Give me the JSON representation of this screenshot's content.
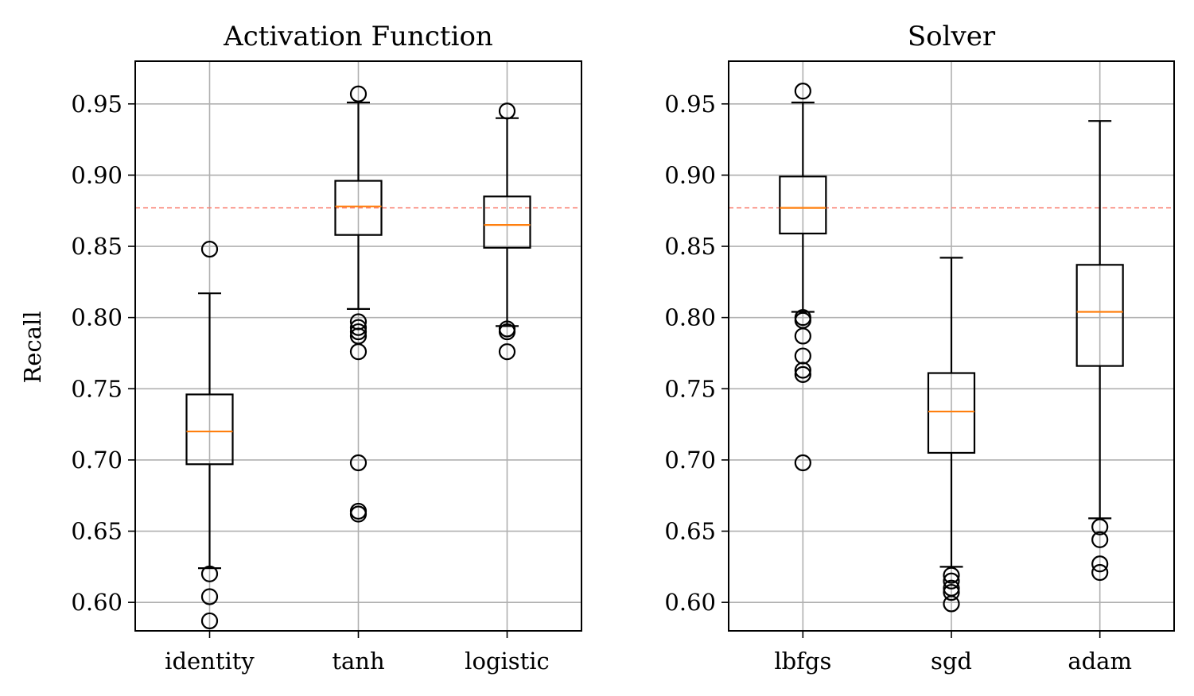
{
  "ylabel": "Recall",
  "colors": {
    "box": "#000000",
    "median": "#ff7f0e",
    "reference_line": "#fa8072",
    "grid": "#b0b0b0",
    "background": "#ffffff"
  },
  "chart_data": [
    {
      "type": "box",
      "title": "Activation Function",
      "ylabel": "Recall",
      "categories": [
        "identity",
        "tanh",
        "logistic"
      ],
      "ylim": [
        0.58,
        0.98
      ],
      "yticks": [
        "0.60",
        "0.65",
        "0.70",
        "0.75",
        "0.80",
        "0.85",
        "0.90",
        "0.95"
      ],
      "grid": true,
      "reference_line": 0.877,
      "boxes": [
        {
          "label": "identity",
          "whisker_low": 0.624,
          "q1": 0.697,
          "median": 0.72,
          "q3": 0.746,
          "whisker_high": 0.817,
          "outliers": [
            0.848,
            0.62,
            0.604,
            0.587
          ]
        },
        {
          "label": "tanh",
          "whisker_low": 0.806,
          "q1": 0.858,
          "median": 0.878,
          "q3": 0.896,
          "whisker_high": 0.951,
          "outliers": [
            0.957,
            0.797,
            0.793,
            0.79,
            0.787,
            0.776,
            0.698,
            0.664,
            0.662
          ]
        },
        {
          "label": "logistic",
          "whisker_low": 0.794,
          "q1": 0.849,
          "median": 0.865,
          "q3": 0.885,
          "whisker_high": 0.94,
          "outliers": [
            0.945,
            0.792,
            0.79,
            0.776
          ]
        }
      ]
    },
    {
      "type": "box",
      "title": "Solver",
      "ylabel": "",
      "categories": [
        "lbfgs",
        "sgd",
        "adam"
      ],
      "ylim": [
        0.58,
        0.98
      ],
      "yticks": [
        "0.60",
        "0.65",
        "0.70",
        "0.75",
        "0.80",
        "0.85",
        "0.90",
        "0.95"
      ],
      "grid": true,
      "reference_line": 0.877,
      "boxes": [
        {
          "label": "lbfgs",
          "whisker_low": 0.804,
          "q1": 0.859,
          "median": 0.877,
          "q3": 0.899,
          "whisker_high": 0.951,
          "outliers": [
            0.959,
            0.8,
            0.798,
            0.787,
            0.773,
            0.763,
            0.76,
            0.698
          ]
        },
        {
          "label": "sgd",
          "whisker_low": 0.625,
          "q1": 0.705,
          "median": 0.734,
          "q3": 0.761,
          "whisker_high": 0.842,
          "outliers": [
            0.619,
            0.615,
            0.61,
            0.607,
            0.599
          ]
        },
        {
          "label": "adam",
          "whisker_low": 0.659,
          "q1": 0.766,
          "median": 0.804,
          "q3": 0.837,
          "whisker_high": 0.938,
          "outliers": [
            0.653,
            0.644,
            0.627,
            0.621
          ]
        }
      ]
    }
  ]
}
